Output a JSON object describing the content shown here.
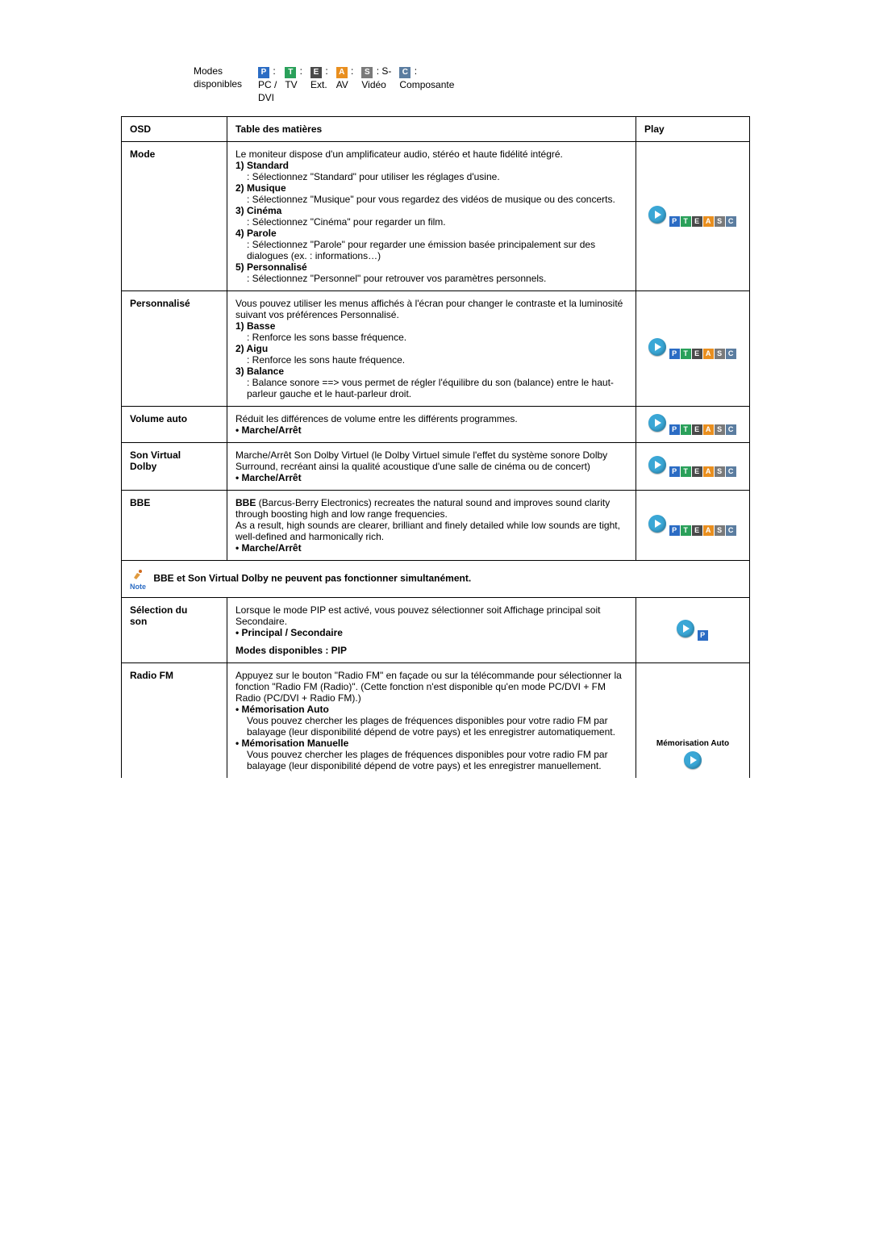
{
  "modesHeader": {
    "label1": "Modes",
    "label2": "disponibles",
    "items": [
      {
        "letter": "P",
        "cls": "bg-P",
        "line2": "PC /",
        "line3": "DVI"
      },
      {
        "letter": "T",
        "cls": "bg-T",
        "line2": "TV",
        "line3": ""
      },
      {
        "letter": "E",
        "cls": "bg-E",
        "line2": "Ext.",
        "line3": ""
      },
      {
        "letter": "A",
        "cls": "bg-A",
        "line2": "AV",
        "line3": ""
      },
      {
        "letter": "S",
        "cls": "bg-S",
        "suffix": "S-",
        "line2": "Vidéo",
        "line3": ""
      },
      {
        "letter": "C",
        "cls": "bg-C",
        "line2": "Composante",
        "line3": ""
      }
    ]
  },
  "header": {
    "c1": "OSD",
    "c2": "Table des matières",
    "c3": "Play"
  },
  "rows": {
    "mode": {
      "title": "Mode",
      "intro": "Le moniteur dispose d'un amplificateur audio, stéréo et haute fidélité intégré.",
      "i1": "1) Standard",
      "d1": ": Sélectionnez \"Standard\" pour utiliser les réglages d'usine.",
      "i2": "2) Musique",
      "d2": ": Sélectionnez \"Musique\" pour vous regardez des vidéos de musique ou des concerts.",
      "i3": "3) Cinéma",
      "d3": ": Sélectionnez \"Cinéma\" pour regarder un film.",
      "i4": "4) Parole",
      "d4": ": Sélectionnez \"Parole\" pour regarder une émission basée principalement sur des dialogues (ex. : informations…)",
      "i5": "5) Personnalisé",
      "d5": ": Sélectionnez \"Personnel\" pour retrouver vos paramètres personnels."
    },
    "perso": {
      "title": "Personnalisé",
      "intro": "Vous pouvez utiliser les menus affichés à l'écran pour changer le contraste et la luminosité suivant vos préférences Personnalisé.",
      "i1": "1) Basse",
      "d1": ": Renforce les sons basse fréquence.",
      "i2": "2) Aigu",
      "d2": ": Renforce les sons haute fréquence.",
      "i3": "3) Balance",
      "d3": ": Balance sonore ==> vous permet de régler l'équilibre du son (balance) entre le haut-parleur gauche et le haut-parleur droit."
    },
    "volauto": {
      "title": "Volume auto",
      "text": "Réduit les différences de volume entre les différents programmes.",
      "bullet": "Marche/Arrêt"
    },
    "dolby": {
      "title1": "Son Virtual",
      "title2": "Dolby",
      "text": "Marche/Arrêt Son Dolby Virtuel (le Dolby Virtuel simule l'effet du système sonore Dolby Surround, recréant ainsi la qualité acoustique d'une salle de cinéma ou de concert)",
      "bullet": "Marche/Arrêt"
    },
    "bbe": {
      "title": "BBE",
      "lead": "BBE",
      "text1": " (Barcus-Berry Electronics) recreates the natural sound and improves sound clarity through boosting high and low range frequencies.",
      "text2": "As a result, high sounds are clearer, brilliant and finely detailed while low sounds are tight, well-defined and harmonically rich.",
      "bullet": "Marche/Arrêt"
    },
    "note": {
      "label": "Note",
      "text": "BBE et Son Virtual Dolby ne peuvent pas fonctionner simultanément."
    },
    "selson": {
      "title1": "Sélection du",
      "title2": "son",
      "text": "Lorsque le mode PIP est activé, vous pouvez sélectionner soit Affichage principal soit Secondaire.",
      "bullet": "Principal / Secondaire",
      "modes": "Modes disponibles : PIP"
    },
    "radio": {
      "title": "Radio FM",
      "intro": "Appuyez sur le bouton \"Radio FM\" en façade ou sur la télécommande pour sélectionner la fonction \"Radio FM (Radio)\". (Cette fonction n'est disponible qu'en mode PC/DVI + FM Radio (PC/DVI + Radio FM).)",
      "b1": "Mémorisation Auto",
      "t1": "Vous pouvez chercher les plages de fréquences disponibles pour votre radio FM par balayage (leur disponibilité dépend de votre pays) et les enregistrer automatiquement.",
      "b2": "Mémorisation Manuelle",
      "t2": "Vous pouvez chercher les plages de fréquences disponibles pour votre radio FM par balayage (leur disponibilité dépend de votre pays) et les enregistrer manuellement.",
      "playLabel": "Mémorisation Auto"
    }
  },
  "badges": [
    "P",
    "T",
    "E",
    "A",
    "S",
    "C"
  ],
  "badgeClasses": {
    "P": "bg-P",
    "T": "bg-T",
    "E": "bg-E",
    "A": "bg-A",
    "S": "bg-S",
    "C": "bg-C"
  }
}
